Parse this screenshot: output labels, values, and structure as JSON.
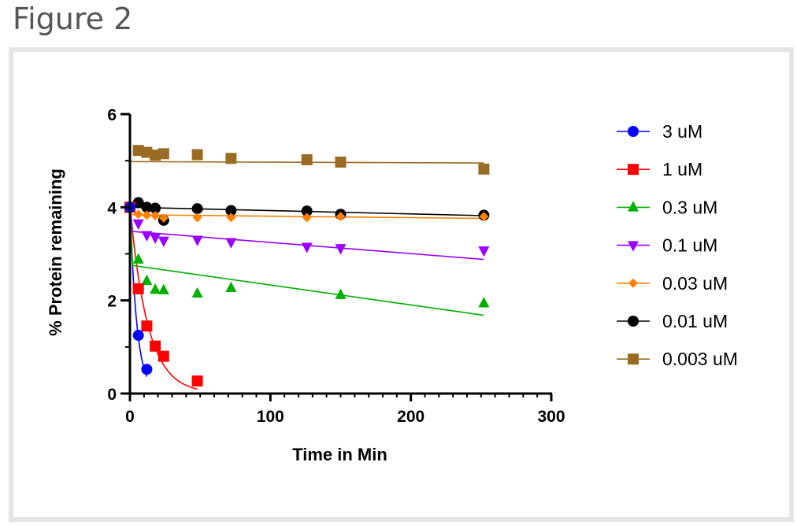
{
  "figure_label": "Figure 2",
  "chart_data": {
    "type": "scatter",
    "xlabel": "Time in Min",
    "ylabel": "% Protein remaining",
    "xlim": [
      0,
      300
    ],
    "ylim": [
      0,
      6
    ],
    "xticks": [
      0,
      100,
      200,
      300
    ],
    "yticks": [
      0,
      2,
      4,
      6
    ],
    "x_minor_step": 10,
    "y_minor_step": 1,
    "grid": false,
    "legend_position": "right",
    "series": [
      {
        "name": "3 uM",
        "color": "#0000ff",
        "marker": "circle",
        "points": [
          [
            0,
            4.0
          ],
          [
            6,
            1.25
          ],
          [
            12,
            0.52
          ]
        ],
        "fit": {
          "kind": "exp",
          "y0": 4.0,
          "k": 0.2,
          "xmax": 12
        }
      },
      {
        "name": "1 uM",
        "color": "#ff0000",
        "marker": "square",
        "points": [
          [
            0,
            4.0
          ],
          [
            6,
            2.25
          ],
          [
            12,
            1.45
          ],
          [
            18,
            1.02
          ],
          [
            24,
            0.8
          ],
          [
            48,
            0.27
          ]
        ],
        "fit": {
          "kind": "exp",
          "y0": 4.0,
          "k": 0.078,
          "xmax": 48
        }
      },
      {
        "name": "0.3 uM",
        "color": "#00b000",
        "marker": "triangle-up",
        "points": [
          [
            0,
            4.0
          ],
          [
            6,
            2.88
          ],
          [
            12,
            2.42
          ],
          [
            18,
            2.23
          ],
          [
            24,
            2.22
          ],
          [
            48,
            2.15
          ],
          [
            72,
            2.27
          ],
          [
            150,
            2.12
          ],
          [
            252,
            1.94
          ]
        ],
        "fit": {
          "kind": "line_from_start",
          "y_start": 4.0,
          "x_knee": 2,
          "y_knee": 2.75,
          "x_end": 252,
          "y_end": 1.68
        }
      },
      {
        "name": "0.1 uM",
        "color": "#9900ff",
        "marker": "triangle-down",
        "points": [
          [
            0,
            4.0
          ],
          [
            6,
            3.65
          ],
          [
            12,
            3.4
          ],
          [
            18,
            3.35
          ],
          [
            24,
            3.28
          ],
          [
            48,
            3.3
          ],
          [
            72,
            3.25
          ],
          [
            126,
            3.15
          ],
          [
            150,
            3.12
          ],
          [
            252,
            3.07
          ]
        ],
        "fit": {
          "kind": "line_from_start",
          "y_start": 4.0,
          "x_knee": 2,
          "y_knee": 3.48,
          "x_end": 252,
          "y_end": 2.88
        }
      },
      {
        "name": "0.03 uM",
        "color": "#ff8000",
        "marker": "diamond",
        "points": [
          [
            0,
            4.0
          ],
          [
            6,
            3.85
          ],
          [
            12,
            3.83
          ],
          [
            18,
            3.82
          ],
          [
            24,
            3.77
          ],
          [
            48,
            3.78
          ],
          [
            72,
            3.78
          ],
          [
            126,
            3.78
          ],
          [
            150,
            3.8
          ],
          [
            252,
            3.8
          ]
        ],
        "fit": {
          "kind": "line",
          "x_start": 0,
          "y_start": 3.84,
          "x_end": 252,
          "y_end": 3.76
        }
      },
      {
        "name": "0.01 uM",
        "color": "#000000",
        "marker": "circle",
        "points": [
          [
            0,
            4.0
          ],
          [
            6,
            4.1
          ],
          [
            12,
            4.0
          ],
          [
            18,
            3.98
          ],
          [
            24,
            3.72
          ],
          [
            48,
            3.97
          ],
          [
            72,
            3.93
          ],
          [
            126,
            3.92
          ],
          [
            150,
            3.85
          ],
          [
            252,
            3.83
          ]
        ],
        "fit": {
          "kind": "line",
          "x_start": 0,
          "y_start": 4.0,
          "x_end": 252,
          "y_end": 3.82
        }
      },
      {
        "name": "0.003 uM",
        "color": "#9a6b22",
        "marker": "square",
        "points": [
          [
            0,
            4.0
          ],
          [
            6,
            5.22
          ],
          [
            12,
            5.18
          ],
          [
            18,
            5.12
          ],
          [
            24,
            5.15
          ],
          [
            48,
            5.13
          ],
          [
            72,
            5.05
          ],
          [
            126,
            5.02
          ],
          [
            150,
            4.97
          ],
          [
            252,
            4.82
          ]
        ],
        "fit": {
          "kind": "line",
          "x_start": 0,
          "y_start": 4.98,
          "x_end": 252,
          "y_end": 4.95
        }
      }
    ]
  }
}
